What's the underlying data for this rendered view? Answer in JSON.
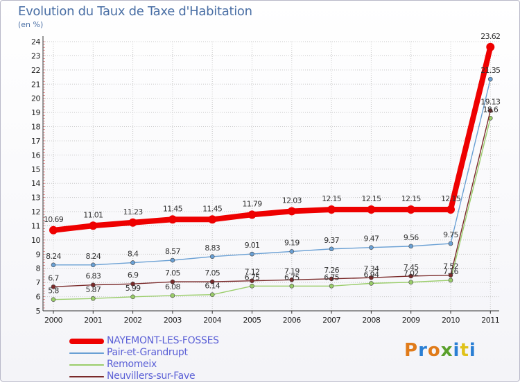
{
  "title": "Evolution du Taux de Taxe d'Habitation",
  "subtitle": "(en %)",
  "logo": {
    "text": "Proxiti",
    "colors": [
      "#e07b1a",
      "#2a7fd4",
      "#e07b1a",
      "#5aa02c",
      "#2a7fd4",
      "#e0c21a",
      "#2a7fd4"
    ]
  },
  "chart_data": {
    "type": "line",
    "title": "Evolution du Taux de Taxe d'Habitation",
    "ylabel": "(en %)",
    "xlabel": "",
    "categories": [
      "2000",
      "2001",
      "2002",
      "2003",
      "2004",
      "2005",
      "2006",
      "2007",
      "2008",
      "2009",
      "2010",
      "2011"
    ],
    "ylim": [
      5,
      24
    ],
    "yticks": [
      5,
      6,
      7,
      8,
      9,
      10,
      11,
      12,
      13,
      14,
      15,
      16,
      17,
      18,
      19,
      20,
      21,
      22,
      23,
      24
    ],
    "grid": true,
    "legend_position": "bottom-left",
    "series": [
      {
        "name": "NAYEMONT-LES-FOSSES",
        "color": "#ee0000",
        "values": [
          10.69,
          11.01,
          11.23,
          11.45,
          11.45,
          11.79,
          12.03,
          12.15,
          12.15,
          12.15,
          12.15,
          23.62
        ],
        "labels": [
          "10.69",
          "11.01",
          "11.23",
          "11.45",
          "11.45",
          "11.79",
          "12.03",
          "12.15",
          "12.15",
          "12.15",
          "12.15",
          "23.62"
        ]
      },
      {
        "name": "Pair-et-Grandrupt",
        "color": "#6aa0d4",
        "values": [
          8.24,
          8.24,
          8.4,
          8.57,
          8.83,
          9.01,
          9.19,
          9.37,
          9.47,
          9.56,
          9.75,
          21.35
        ],
        "labels": [
          "8.24",
          "8.24",
          "8.4",
          "8.57",
          "8.83",
          "9.01",
          "9.19",
          "9.37",
          "9.47",
          "9.56",
          "9.75",
          "21.35"
        ]
      },
      {
        "name": "Remomeix",
        "color": "#9acd6a",
        "values": [
          5.8,
          5.87,
          5.99,
          6.08,
          6.14,
          6.75,
          6.75,
          6.75,
          6.94,
          7.02,
          7.16,
          18.6
        ],
        "labels": [
          "5.8",
          "5.87",
          "5.99",
          "6.08",
          "6.14",
          "6.75",
          "6.75",
          "6.75",
          "6.94",
          "7.02",
          "7.16",
          "18.6"
        ]
      },
      {
        "name": "Neuvillers-sur-Fave",
        "color": "#7a2a2a",
        "values": [
          6.7,
          6.83,
          6.9,
          7.05,
          7.05,
          7.12,
          7.19,
          7.26,
          7.34,
          7.45,
          7.52,
          19.13
        ],
        "labels": [
          "6.7",
          "6.83",
          "6.9",
          "7.05",
          "7.05",
          "7.12",
          "7.19",
          "7.26",
          "7.34",
          "7.45",
          "7.52",
          "19.13"
        ]
      }
    ]
  }
}
